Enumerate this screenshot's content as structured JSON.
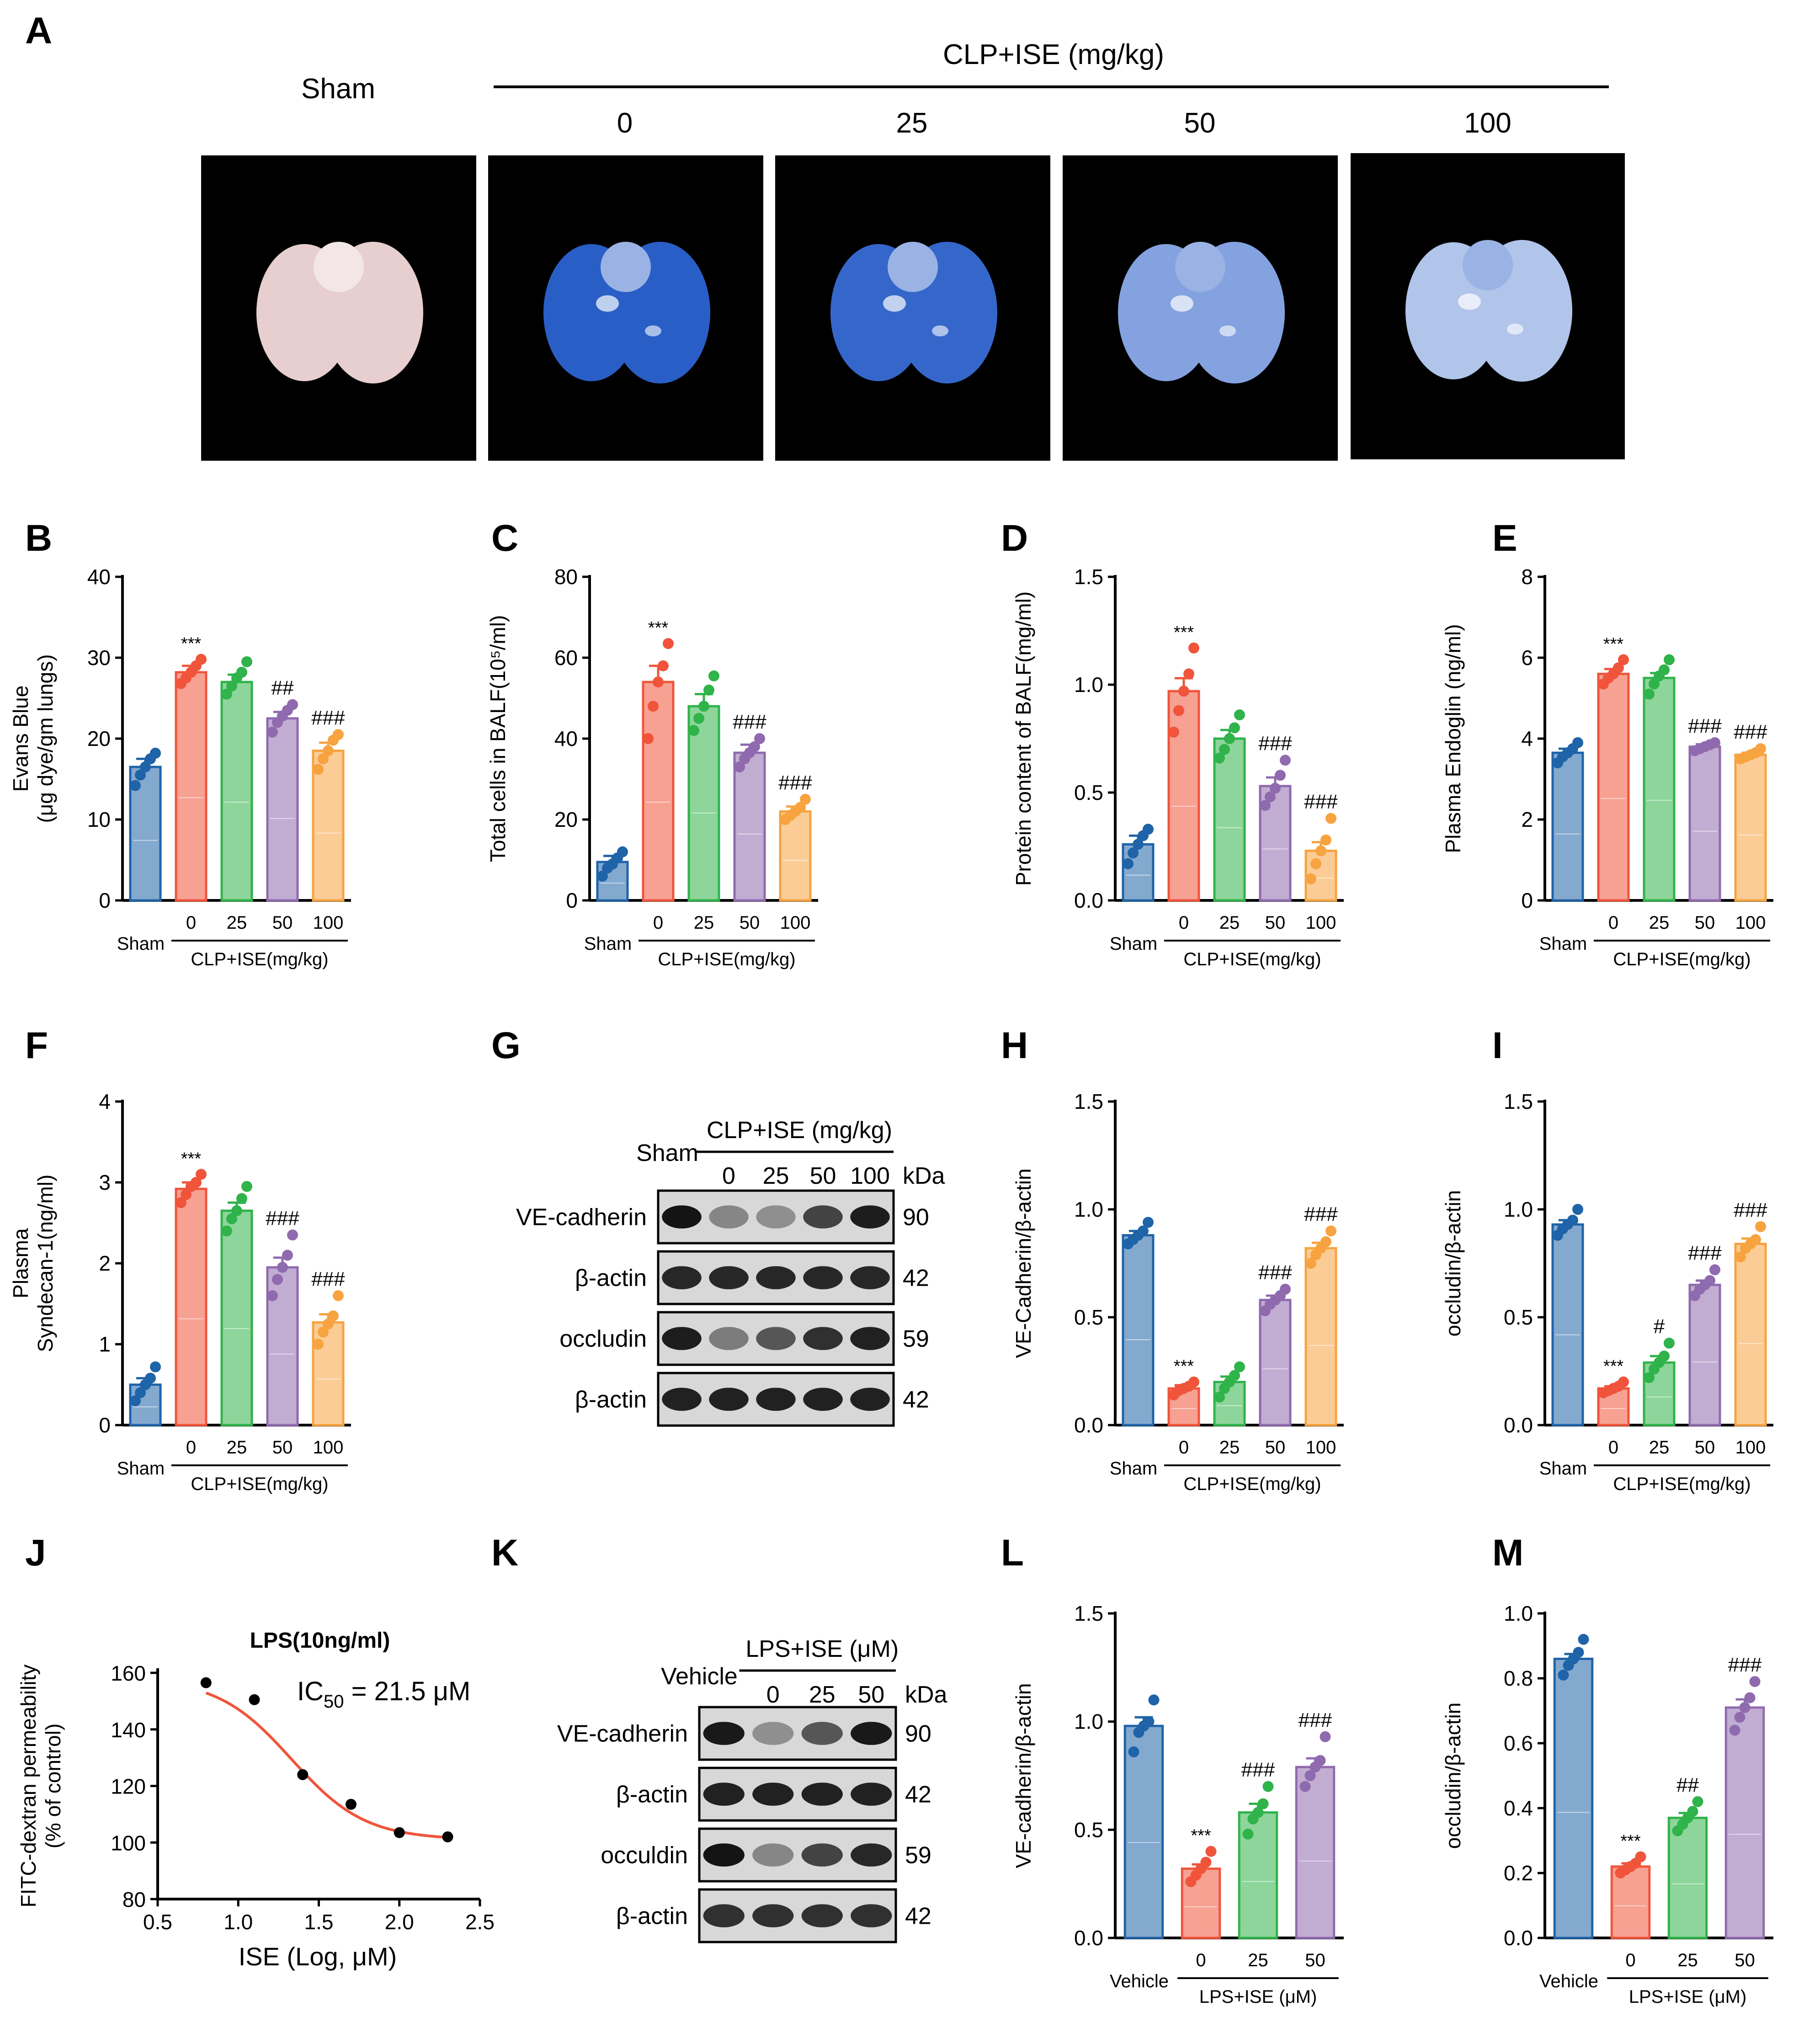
{
  "panel_letters": [
    "A",
    "B",
    "C",
    "D",
    "E",
    "F",
    "G",
    "H",
    "I",
    "J",
    "K",
    "L",
    "M"
  ],
  "colors": {
    "sham_vehicle": "#1f63a8",
    "dose0": "#f0543b",
    "dose25": "#2fb34a",
    "dose50": "#8f6aae",
    "dose100": "#f7a340",
    "fit_curve": "#f0543b",
    "background_photo": "#000000",
    "dye_blue": "#1f56c4"
  },
  "panel_a": {
    "group_label": "CLP+ISE (mg/kg)",
    "sham_label": "Sham",
    "doses": [
      "0",
      "25",
      "50",
      "100"
    ],
    "photo_blue_intensity": [
      0.0,
      0.95,
      0.9,
      0.55,
      0.35
    ]
  },
  "bar_xlabels": {
    "clp": {
      "control": "Sham",
      "group": "CLP+ISE(mg/kg)",
      "doses": [
        "0",
        "25",
        "50",
        "100"
      ]
    },
    "lps": {
      "control": "Vehicle",
      "group": "LPS+ISE (μM)",
      "doses": [
        "0",
        "25",
        "50"
      ]
    }
  },
  "chart_data": [
    {
      "panel": "B",
      "type": "bar",
      "ylabel": [
        "Evans Blue",
        "(μg dye/gm lungs)"
      ],
      "ylim": [
        0,
        40
      ],
      "yticks": [
        0,
        10,
        20,
        30,
        40
      ],
      "xgroup": "clp",
      "values": [
        16.5,
        28.2,
        27.0,
        22.5,
        18.5
      ],
      "errors": [
        1.0,
        0.8,
        0.9,
        0.8,
        1.0
      ],
      "annotations": [
        "",
        "***",
        "",
        "##",
        "###"
      ],
      "points": [
        [
          14.2,
          15.5,
          16.5,
          17.5,
          18.2
        ],
        [
          26.8,
          27.5,
          28.2,
          29.0,
          29.8
        ],
        [
          25.5,
          26.5,
          27.5,
          28.2,
          29.5
        ],
        [
          20.8,
          22.0,
          22.8,
          23.5,
          24.2
        ],
        [
          16.2,
          17.5,
          18.5,
          19.8,
          20.5
        ]
      ]
    },
    {
      "panel": "C",
      "type": "bar",
      "ylabel": [
        "Total cells in BALF(10⁵/ml)"
      ],
      "ylim": [
        0,
        80
      ],
      "yticks": [
        0,
        20,
        40,
        60,
        80
      ],
      "xgroup": "clp",
      "values": [
        9.5,
        54,
        48,
        36.5,
        22
      ],
      "errors": [
        1.5,
        4,
        3,
        2,
        1.2
      ],
      "annotations": [
        "",
        "***",
        "",
        "###",
        "###"
      ],
      "points": [
        [
          6,
          8,
          9,
          10.5,
          12
        ],
        [
          40,
          48,
          54,
          58,
          63.5
        ],
        [
          42,
          45,
          48,
          52,
          55.5
        ],
        [
          33,
          35,
          36.5,
          38,
          40
        ],
        [
          20,
          21,
          22,
          23,
          25
        ]
      ]
    },
    {
      "panel": "D",
      "type": "bar",
      "ylabel": [
        "Protein content of BALF(mg/ml)"
      ],
      "ylim": [
        0,
        1.5
      ],
      "yticks": [
        "0.0",
        "0.5",
        "1.0",
        "1.5"
      ],
      "xgroup": "clp",
      "values": [
        0.26,
        0.97,
        0.75,
        0.53,
        0.23
      ],
      "errors": [
        0.04,
        0.06,
        0.04,
        0.04,
        0.04
      ],
      "annotations": [
        "",
        "***",
        "",
        "###",
        "###"
      ],
      "points": [
        [
          0.17,
          0.22,
          0.26,
          0.3,
          0.33
        ],
        [
          0.78,
          0.88,
          0.97,
          1.05,
          1.17
        ],
        [
          0.66,
          0.7,
          0.75,
          0.8,
          0.86
        ],
        [
          0.44,
          0.48,
          0.52,
          0.58,
          0.65
        ],
        [
          0.1,
          0.17,
          0.23,
          0.28,
          0.38
        ]
      ]
    },
    {
      "panel": "E",
      "type": "bar",
      "ylabel": [
        "Plasma Endoglin (ng/ml)"
      ],
      "ylim": [
        0,
        8
      ],
      "yticks": [
        0,
        2,
        4,
        6,
        8
      ],
      "xgroup": "clp",
      "values": [
        3.65,
        5.6,
        5.5,
        3.8,
        3.6
      ],
      "errors": [
        0.1,
        0.12,
        0.12,
        0.06,
        0.05
      ],
      "annotations": [
        "",
        "***",
        "",
        "###",
        "###"
      ],
      "points": [
        [
          3.4,
          3.55,
          3.65,
          3.75,
          3.9
        ],
        [
          5.35,
          5.5,
          5.6,
          5.75,
          5.95
        ],
        [
          5.1,
          5.35,
          5.55,
          5.7,
          5.95
        ],
        [
          3.7,
          3.75,
          3.8,
          3.85,
          3.9
        ],
        [
          3.5,
          3.55,
          3.6,
          3.65,
          3.75
        ]
      ]
    },
    {
      "panel": "F",
      "type": "bar",
      "ylabel": [
        "Plasma",
        "Syndecan-1(ng/ml)"
      ],
      "ylim": [
        0,
        4
      ],
      "yticks": [
        0,
        1,
        2,
        3,
        4
      ],
      "xgroup": "clp",
      "values": [
        0.5,
        2.92,
        2.65,
        1.95,
        1.27
      ],
      "errors": [
        0.08,
        0.08,
        0.1,
        0.12,
        0.1
      ],
      "annotations": [
        "",
        "***",
        "",
        "###",
        "###"
      ],
      "points": [
        [
          0.3,
          0.4,
          0.5,
          0.58,
          0.72
        ],
        [
          2.75,
          2.85,
          2.95,
          3.0,
          3.1
        ],
        [
          2.4,
          2.55,
          2.65,
          2.8,
          2.95
        ],
        [
          1.6,
          1.8,
          1.95,
          2.1,
          2.35
        ],
        [
          1.0,
          1.15,
          1.25,
          1.35,
          1.6
        ]
      ]
    },
    {
      "panel": "H",
      "type": "bar",
      "ylabel": [
        "VE-Cadherin/β-actin"
      ],
      "ylim": [
        0,
        1.5
      ],
      "yticks": [
        "0.0",
        "0.5",
        "1.0",
        "1.5"
      ],
      "xgroup": "clp",
      "values": [
        0.88,
        0.17,
        0.2,
        0.58,
        0.82
      ],
      "errors": [
        0.02,
        0.015,
        0.025,
        0.02,
        0.025
      ],
      "annotations": [
        "",
        "***",
        "",
        "###",
        "###"
      ],
      "points": [
        [
          0.84,
          0.86,
          0.88,
          0.9,
          0.94
        ],
        [
          0.14,
          0.16,
          0.17,
          0.18,
          0.2
        ],
        [
          0.13,
          0.17,
          0.2,
          0.23,
          0.27
        ],
        [
          0.53,
          0.56,
          0.58,
          0.6,
          0.63
        ],
        [
          0.75,
          0.79,
          0.82,
          0.85,
          0.9
        ]
      ]
    },
    {
      "panel": "I",
      "type": "bar",
      "ylabel": [
        "occludin/β-actin"
      ],
      "ylim": [
        0,
        1.5
      ],
      "yticks": [
        "0.0",
        "0.5",
        "1.0",
        "1.5"
      ],
      "xgroup": "clp",
      "values": [
        0.93,
        0.17,
        0.29,
        0.65,
        0.84
      ],
      "errors": [
        0.02,
        0.01,
        0.03,
        0.02,
        0.025
      ],
      "annotations": [
        "",
        "***",
        "#",
        "###",
        "###"
      ],
      "points": [
        [
          0.88,
          0.91,
          0.93,
          0.95,
          1.0
        ],
        [
          0.15,
          0.16,
          0.17,
          0.18,
          0.2
        ],
        [
          0.22,
          0.26,
          0.29,
          0.32,
          0.38
        ],
        [
          0.6,
          0.63,
          0.65,
          0.67,
          0.72
        ],
        [
          0.78,
          0.82,
          0.84,
          0.86,
          0.92
        ]
      ]
    },
    {
      "panel": "L",
      "type": "bar",
      "ylabel": [
        "VE-cadherin/β-actin"
      ],
      "ylim": [
        0,
        1.5
      ],
      "yticks": [
        "0.0",
        "0.5",
        "1.0",
        "1.5"
      ],
      "xgroup": "lps",
      "values": [
        0.98,
        0.32,
        0.58,
        0.79
      ],
      "errors": [
        0.04,
        0.02,
        0.04,
        0.04
      ],
      "annotations": [
        "",
        "***",
        "###",
        "###"
      ],
      "points": [
        [
          0.86,
          0.95,
          0.98,
          1.0,
          1.1
        ],
        [
          0.26,
          0.29,
          0.32,
          0.35,
          0.4
        ],
        [
          0.48,
          0.55,
          0.58,
          0.62,
          0.7
        ],
        [
          0.7,
          0.75,
          0.79,
          0.82,
          0.93
        ]
      ]
    },
    {
      "panel": "M",
      "type": "bar",
      "ylabel": [
        "occludin/β-actin"
      ],
      "ylim": [
        0,
        1.0
      ],
      "yticks": [
        "0.0",
        "0.2",
        "0.4",
        "0.6",
        "0.8",
        "1.0"
      ],
      "xgroup": "lps",
      "values": [
        0.86,
        0.22,
        0.37,
        0.71
      ],
      "errors": [
        0.015,
        0.01,
        0.015,
        0.025
      ],
      "annotations": [
        "",
        "***",
        "##",
        "###"
      ],
      "points": [
        [
          0.81,
          0.84,
          0.86,
          0.88,
          0.92
        ],
        [
          0.2,
          0.21,
          0.22,
          0.23,
          0.25
        ],
        [
          0.33,
          0.35,
          0.37,
          0.39,
          0.42
        ],
        [
          0.64,
          0.68,
          0.71,
          0.74,
          0.79
        ]
      ]
    },
    {
      "panel": "J",
      "type": "line",
      "title": "LPS(10ng/ml)",
      "annotation": "IC50 = 21.5 μM",
      "ic50_main": "IC",
      "ic50_sub": "50",
      "ic50_value": " = 21.5 μM",
      "xlabel": "ISE (Log, μM)",
      "ylabel": [
        "FITC-dextran permeability",
        "(% of control)"
      ],
      "xlim": [
        0.5,
        2.5
      ],
      "ylim": [
        80,
        160
      ],
      "xticks": [
        "0.5",
        "1.0",
        "1.5",
        "2.0",
        "2.5"
      ],
      "yticks": [
        80,
        100,
        120,
        140,
        160
      ],
      "x": [
        0.8,
        1.1,
        1.4,
        1.7,
        2.0,
        2.3
      ],
      "y": [
        156.5,
        150.5,
        124,
        113.5,
        103.5,
        102
      ],
      "fit": {
        "top": 158,
        "bottom": 101,
        "logIC50": 1.33,
        "hill": -1.9
      }
    }
  ],
  "western_g": {
    "control_label": "Sham",
    "group_label": "CLP+ISE (mg/kg)",
    "lanes": [
      "0",
      "25",
      "50",
      "100"
    ],
    "unit": "kDa",
    "rows": [
      {
        "name": "VE-cadherin",
        "kda": "90",
        "intensity": [
          0.95,
          0.35,
          0.3,
          0.7,
          0.9
        ]
      },
      {
        "name": "β-actin",
        "kda": "42",
        "intensity": [
          0.85,
          0.85,
          0.85,
          0.85,
          0.85
        ]
      },
      {
        "name": "occludin",
        "kda": "59",
        "intensity": [
          0.9,
          0.4,
          0.6,
          0.8,
          0.88
        ]
      },
      {
        "name": "β-actin",
        "kda": "42",
        "intensity": [
          0.88,
          0.88,
          0.88,
          0.88,
          0.88
        ]
      }
    ]
  },
  "western_k": {
    "control_label": "Vehicle",
    "group_label": "LPS+ISE (μM)",
    "lanes": [
      "0",
      "25",
      "50"
    ],
    "unit": "kDa",
    "rows": [
      {
        "name": "VE-cadherin",
        "kda": "90",
        "intensity": [
          0.92,
          0.3,
          0.6,
          0.92
        ]
      },
      {
        "name": "β-actin",
        "kda": "42",
        "intensity": [
          0.88,
          0.88,
          0.88,
          0.88
        ]
      },
      {
        "name": "occuldin",
        "kda": "59",
        "intensity": [
          0.95,
          0.35,
          0.7,
          0.85
        ]
      },
      {
        "name": "β-actin",
        "kda": "42",
        "intensity": [
          0.8,
          0.8,
          0.8,
          0.8
        ]
      }
    ]
  }
}
